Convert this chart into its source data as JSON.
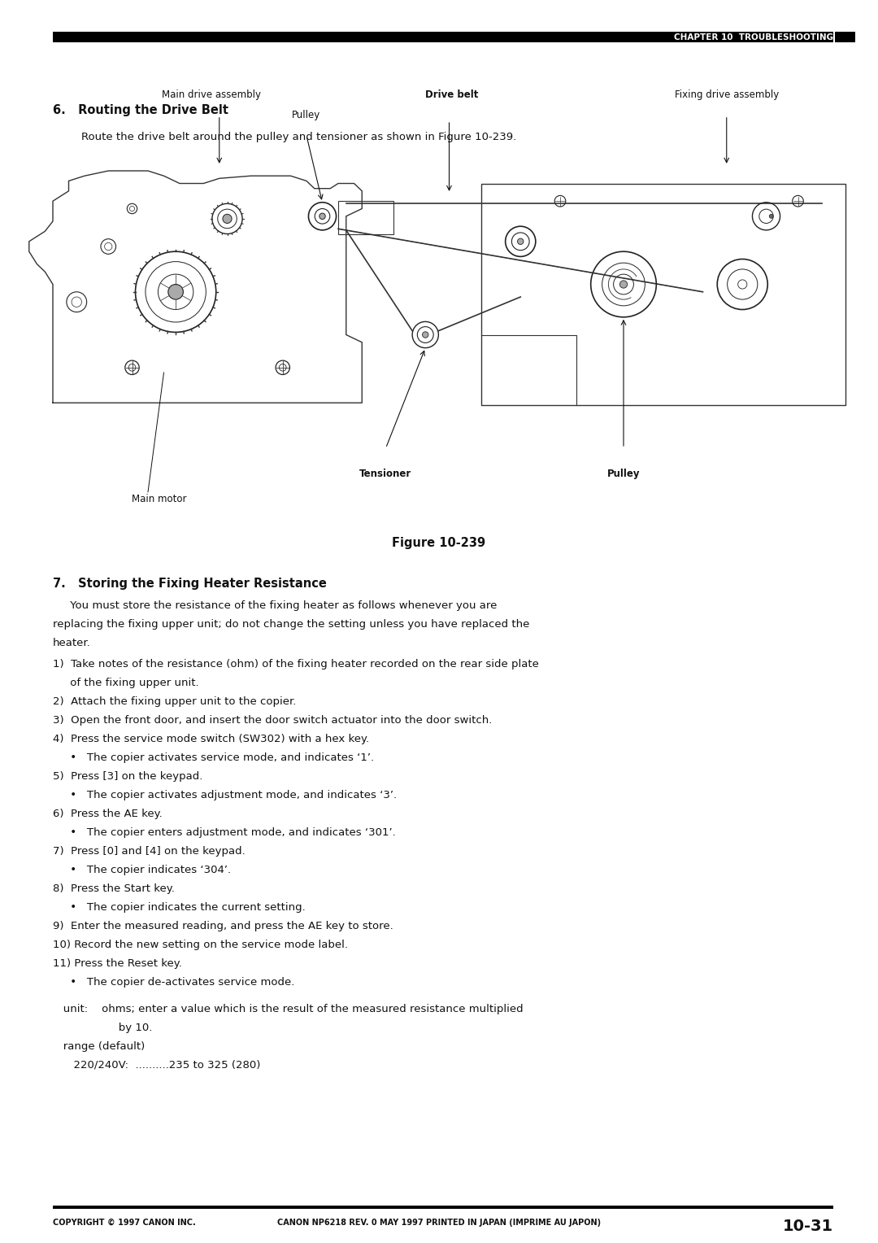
{
  "page_width": 10.8,
  "page_height": 15.28,
  "bg_color": "#ffffff",
  "bar_color": "#000000",
  "header_text": "CHAPTER 10  TROUBLESHOOTING",
  "section6_title": "6.   Routing the Drive Belt",
  "section6_body": "Route the drive belt around the pulley and tensioner as shown in Figure 10-239.",
  "figure_caption": "Figure 10-239",
  "section7_title": "7.   Storing the Fixing Heater Resistance",
  "intro_lines": [
    "     You must store the resistance of the fixing heater as follows whenever you are",
    "replacing the fixing upper unit; do not change the setting unless you have replaced the",
    "heater."
  ],
  "items": [
    "1)  Take notes of the resistance (ohm) of the fixing heater recorded on the rear side plate",
    "     of the fixing upper unit.",
    "2)  Attach the fixing upper unit to the copier.",
    "3)  Open the front door, and insert the door switch actuator into the door switch.",
    "4)  Press the service mode switch (SW302) with a hex key.",
    "     •   The copier activates service mode, and indicates ‘1’.",
    "5)  Press [3] on the keypad.",
    "     •   The copier activates adjustment mode, and indicates ‘3’.",
    "6)  Press the AE key.",
    "     •   The copier enters adjustment mode, and indicates ‘301’.",
    "7)  Press [0] and [4] on the keypad.",
    "     •   The copier indicates ‘304’.",
    "8)  Press the Start key.",
    "     •   The copier indicates the current setting.",
    "9)  Enter the measured reading, and press the AE key to store.",
    "10) Record the new setting on the service mode label.",
    "11) Press the Reset key.",
    "     •   The copier de-activates service mode."
  ],
  "unit_line1": "   unit:    ohms; enter a value which is the result of the measured resistance multiplied",
  "unit_line2": "                   by 10.",
  "range_line1": "   range (default)",
  "range_line2": "      220/240V:  ..........235 to 325 (280)",
  "footer_left": "COPYRIGHT © 1997 CANON INC.",
  "footer_center": "CANON NP6218 REV. 0 MAY 1997 PRINTED IN JAPAN (IMPRIME AU JAPON)",
  "footer_right": "10-31",
  "label_main_drive": "Main drive assembly",
  "label_pulley_left": "Pulley",
  "label_drive_belt": "Drive belt",
  "label_fixing_drive": "Fixing drive assembly",
  "label_tensioner": "Tensioner",
  "label_pulley_right": "Pulley",
  "label_main_motor": "Main motor"
}
